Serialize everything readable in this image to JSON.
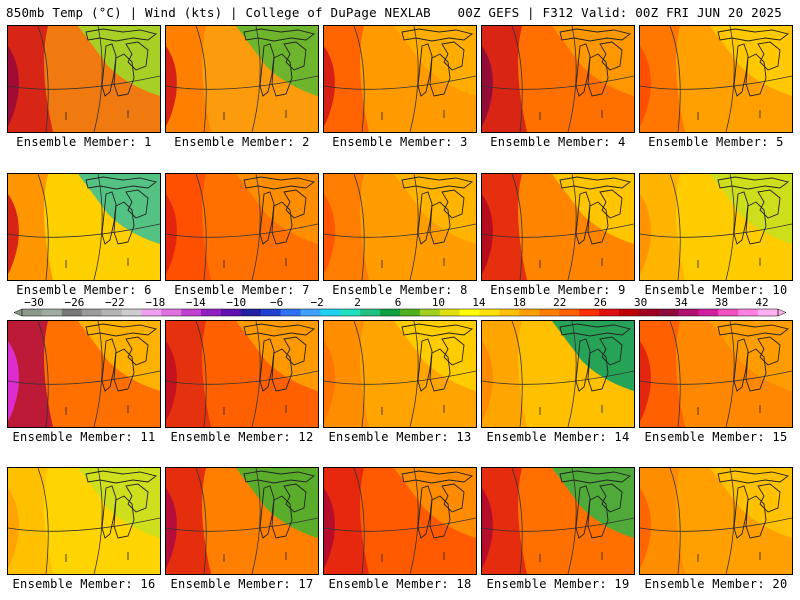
{
  "header": {
    "left_title": "850mb Temp (°C) | Wind (kts) | College of DuPage NEXLAB",
    "right_title": "00Z GEFS | F312 Valid: 00Z FRI JUN 20 2025"
  },
  "members": [
    {
      "label": "Ensemble Member: 1",
      "warm": "#f07a10",
      "cool": "#a0d828",
      "hot": "#9a0a3a",
      "hot2": "#d21818"
    },
    {
      "label": "Ensemble Member: 2",
      "warm": "#fc9c0c",
      "cool": "#5cb830",
      "hot": "#d21818",
      "hot2": "#ff7a00"
    },
    {
      "label": "Ensemble Member: 3",
      "warm": "#ff9a00",
      "cool": "#ffb000",
      "hot": "#d21818",
      "hot2": "#ff5a00"
    },
    {
      "label": "Ensemble Member: 4",
      "warm": "#ff7000",
      "cool": "#ff9c00",
      "hot": "#8c0a3c",
      "hot2": "#d21818"
    },
    {
      "label": "Ensemble Member: 5",
      "warm": "#ffa000",
      "cool": "#ffcc00",
      "hot": "#ff4a00",
      "hot2": "#ff7000"
    },
    {
      "label": "Ensemble Member: 6",
      "warm": "#ffd000",
      "cool": "#40c090",
      "hot": "#d21818",
      "hot2": "#ff8c00"
    },
    {
      "label": "Ensemble Member: 7",
      "warm": "#ff7000",
      "cool": "#ff9000",
      "hot": "#e02010",
      "hot2": "#ff4a00"
    },
    {
      "label": "Ensemble Member: 8",
      "warm": "#ff9c00",
      "cool": "#ffb800",
      "hot": "#ff5000",
      "hot2": "#ff7800"
    },
    {
      "label": "Ensemble Member: 9",
      "warm": "#ff8400",
      "cool": "#ffcc00",
      "hot": "#b00a20",
      "hot2": "#e02010"
    },
    {
      "label": "Ensemble Member: 10",
      "warm": "#ffcc00",
      "cool": "#c8e020",
      "hot": "#ff9000",
      "hot2": "#ffb000"
    },
    {
      "label": "Ensemble Member: 11",
      "warm": "#ff7000",
      "cool": "#ffb800",
      "hot": "#e030e0",
      "hot2": "#b00a40"
    },
    {
      "label": "Ensemble Member: 12",
      "warm": "#ff6000",
      "cool": "#ffa000",
      "hot": "#c01020",
      "hot2": "#e02a10"
    },
    {
      "label": "Ensemble Member: 13",
      "warm": "#ffa400",
      "cool": "#ffd000",
      "hot": "#ff7000",
      "hot2": "#ff8a00"
    },
    {
      "label": "Ensemble Member: 14",
      "warm": "#ffc000",
      "cool": "#10a060",
      "hot": "#ff8800",
      "hot2": "#ffa000"
    },
    {
      "label": "Ensemble Member: 15",
      "warm": "#ff8800",
      "cool": "#ffa000",
      "hot": "#e02010",
      "hot2": "#ff5a00"
    },
    {
      "label": "Ensemble Member: 16",
      "warm": "#ffd400",
      "cool": "#c8e020",
      "hot": "#ffa000",
      "hot2": "#ffbc00"
    },
    {
      "label": "Ensemble Member: 17",
      "warm": "#ff8000",
      "cool": "#48b030",
      "hot": "#b00a40",
      "hot2": "#e02010"
    },
    {
      "label": "Ensemble Member: 18",
      "warm": "#ff5a00",
      "cool": "#ff9000",
      "hot": "#b00a30",
      "hot2": "#e02010"
    },
    {
      "label": "Ensemble Member: 19",
      "warm": "#ff7000",
      "cool": "#3cb040",
      "hot": "#b00a30",
      "hot2": "#e02010"
    },
    {
      "label": "Ensemble Member: 20",
      "warm": "#ffa000",
      "cool": "#ffc400",
      "hot": "#ff6000",
      "hot2": "#ff8a00"
    }
  ],
  "colorbar": {
    "ticks": [
      "-30",
      "-26",
      "-22",
      "-18",
      "-14",
      "-10",
      "-6",
      "-2",
      "2",
      "6",
      "10",
      "14",
      "18",
      "22",
      "26",
      "30",
      "34",
      "38",
      "42"
    ],
    "colors": [
      "#8c9a8c",
      "#a0aca0",
      "#787878",
      "#9c9c9c",
      "#b4b4b4",
      "#cccccc",
      "#f0a0f0",
      "#e070e0",
      "#c040d0",
      "#9020c0",
      "#6010b0",
      "#2020a0",
      "#2040d0",
      "#3070f0",
      "#40a0ff",
      "#20d0f0",
      "#20e0c0",
      "#20c080",
      "#10a040",
      "#50b020",
      "#a0d020",
      "#e0e010",
      "#ffff00",
      "#ffe000",
      "#ffc000",
      "#ffa000",
      "#ff8000",
      "#ff6000",
      "#ff3000",
      "#e01010",
      "#c00000",
      "#a00020",
      "#8c0a3c",
      "#b01070",
      "#d020a0",
      "#f050c0",
      "#ff80e0",
      "#ffb0f0"
    ]
  }
}
